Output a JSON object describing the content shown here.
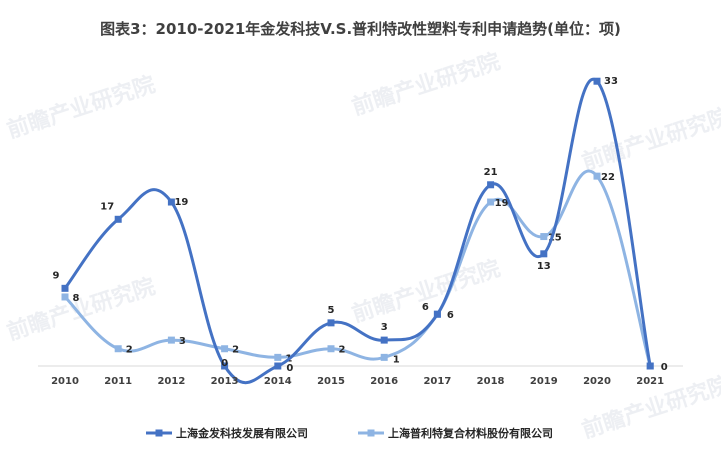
{
  "chart_data": {
    "type": "line",
    "title": "图表3：2010-2021年金发科技V.S.普利特改性塑料专利申请趋势(单位：项)",
    "categories": [
      "2010",
      "2011",
      "2012",
      "2013",
      "2014",
      "2015",
      "2016",
      "2017",
      "2018",
      "2019",
      "2020",
      "2021"
    ],
    "series": [
      {
        "name": "上海金发科技发展有限公司",
        "color": "#4472c4",
        "values": [
          9,
          17,
          19,
          0,
          0,
          5,
          3,
          6,
          21,
          13,
          33,
          0
        ]
      },
      {
        "name": "上海普利特复合材料股份有限公司",
        "color": "#8eb4e3",
        "values": [
          8,
          2,
          3,
          2,
          1,
          2,
          1,
          6,
          19,
          15,
          22,
          0
        ]
      }
    ],
    "ylim": [
      0,
      35
    ],
    "grid": false,
    "legend_position": "bottom",
    "watermark": "前瞻产业研究院"
  }
}
